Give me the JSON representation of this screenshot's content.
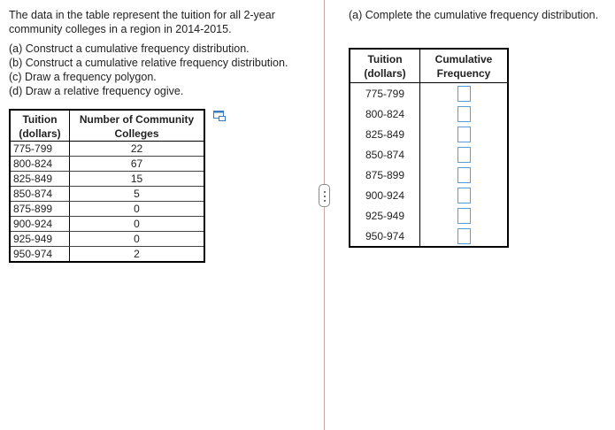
{
  "question": {
    "intro": "The data in the table represent the tuition for all 2-year community colleges in a region in 2014-2015.",
    "tasks": [
      "(a) Construct a cumulative frequency distribution.",
      "(b) Construct a cumulative relative frequency distribution.",
      "(c) Draw a frequency polygon.",
      "(d) Draw a relative frequency ogive."
    ]
  },
  "data_table": {
    "headers": [
      "Tuition (dollars)",
      "Number of Community Colleges"
    ],
    "rows": [
      {
        "range": "775-799",
        "count": "22"
      },
      {
        "range": "800-824",
        "count": "67"
      },
      {
        "range": "825-849",
        "count": "15"
      },
      {
        "range": "850-874",
        "count": "5"
      },
      {
        "range": "875-899",
        "count": "0"
      },
      {
        "range": "900-924",
        "count": "0"
      },
      {
        "range": "925-949",
        "count": "0"
      },
      {
        "range": "950-974",
        "count": "2"
      }
    ]
  },
  "part_a": {
    "prompt": "(a) Complete the cumulative frequency distribution.",
    "headers": [
      "Tuition (dollars)",
      "Cumulative Frequency"
    ],
    "rows": [
      {
        "range": "775-799",
        "value": ""
      },
      {
        "range": "800-824",
        "value": ""
      },
      {
        "range": "825-849",
        "value": ""
      },
      {
        "range": "850-874",
        "value": ""
      },
      {
        "range": "875-899",
        "value": ""
      },
      {
        "range": "900-924",
        "value": ""
      },
      {
        "range": "925-949",
        "value": ""
      },
      {
        "range": "950-974",
        "value": ""
      }
    ]
  },
  "colors": {
    "input_border": "#5a9bd8",
    "divider": "#c9a9a9"
  },
  "icons": {
    "copy": "copy-icon",
    "handle": "drag-handle-icon"
  }
}
